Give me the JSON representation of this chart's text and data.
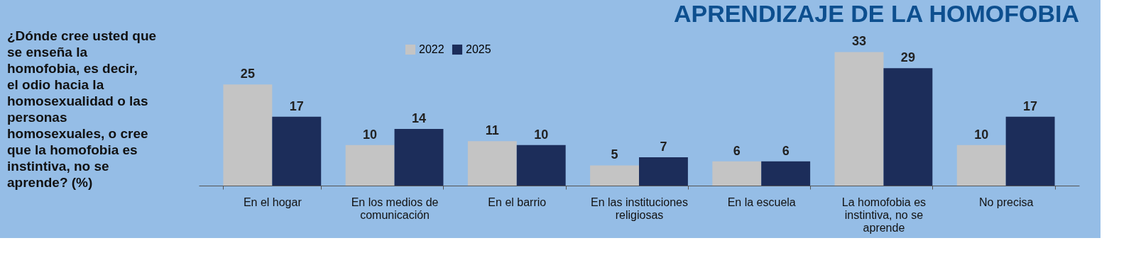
{
  "chart_data": {
    "type": "bar",
    "title": "APRENDIZAJE DE LA HOMOFOBIA",
    "subtitle": "¿Dónde cree usted que se enseña la homofobia, es decir, el odio hacia la homosexualidad o las personas homosexuales, o cree que la homofobia es instintiva, no se aprende? (%)",
    "categories": [
      "En el hogar",
      "En los medios de comunicación",
      "En el barrio",
      "En las instituciones religiosas",
      "En la escuela",
      "La homofobia es instintiva, no se aprende",
      "No precisa"
    ],
    "series": [
      {
        "name": "2022",
        "color": "#c4c4c4",
        "values": [
          25,
          10,
          11,
          5,
          6,
          33,
          10
        ]
      },
      {
        "name": "2025",
        "color": "#1c2d5a",
        "values": [
          17,
          14,
          10,
          7,
          6,
          29,
          17
        ]
      }
    ],
    "data_labels": true,
    "legend": "top",
    "grid": false
  }
}
